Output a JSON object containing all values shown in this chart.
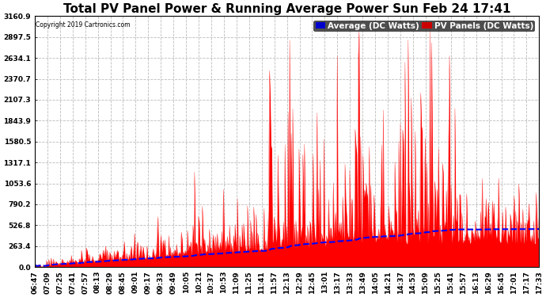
{
  "title": "Total PV Panel Power & Running Average Power Sun Feb 24 17:41",
  "copyright": "Copyright 2019 Cartronics.com",
  "legend_avg": "Average (DC Watts)",
  "legend_pv": "PV Panels (DC Watts)",
  "ymin": 0.0,
  "ymax": 3160.9,
  "yticks": [
    0.0,
    263.4,
    526.8,
    790.2,
    1053.6,
    1317.1,
    1580.5,
    1843.9,
    2107.3,
    2370.7,
    2634.1,
    2897.5,
    3160.9
  ],
  "xtick_labels": [
    "06:47",
    "07:09",
    "07:25",
    "07:41",
    "07:57",
    "08:13",
    "08:29",
    "08:45",
    "09:01",
    "09:17",
    "09:33",
    "09:49",
    "10:05",
    "10:21",
    "10:37",
    "10:53",
    "11:09",
    "11:25",
    "11:41",
    "11:57",
    "12:13",
    "12:29",
    "12:45",
    "13:01",
    "13:17",
    "13:33",
    "13:49",
    "14:05",
    "14:21",
    "14:37",
    "14:53",
    "15:09",
    "15:25",
    "15:41",
    "15:57",
    "16:13",
    "16:29",
    "16:45",
    "17:01",
    "17:17",
    "17:33"
  ],
  "bg_color": "#ffffff",
  "plot_bg_color": "#ffffff",
  "grid_color": "#bbbbbb",
  "pv_color": "#ff0000",
  "avg_color": "#0000ff",
  "title_fontsize": 11,
  "tick_fontsize": 6.5,
  "legend_fontsize": 7.5,
  "avg_legend_bg": "#0000cc",
  "pv_legend_bg": "#cc0000"
}
